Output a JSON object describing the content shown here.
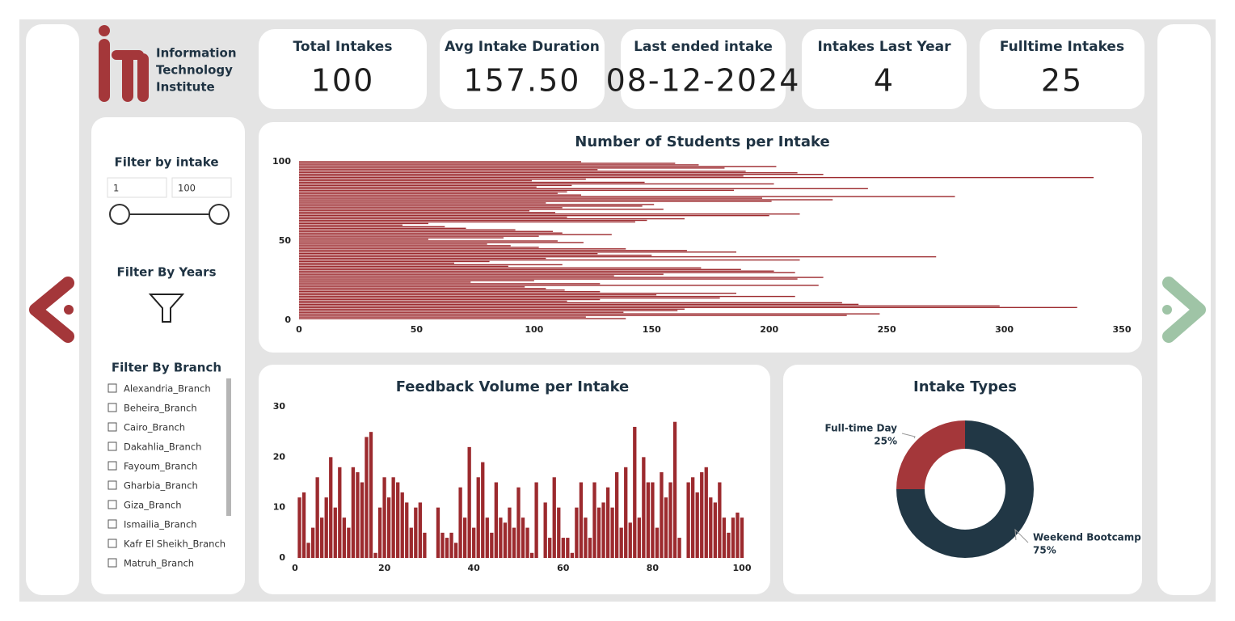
{
  "logo": {
    "lines": [
      "Information",
      "Technology",
      "Institute"
    ]
  },
  "kpis": [
    {
      "title": "Total Intakes",
      "value": 100
    },
    {
      "title": "Avg Intake Duration",
      "value": "157.50"
    },
    {
      "title": "Last ended intake",
      "value": "08-12-2024"
    },
    {
      "title": "Intakes Last Year",
      "value": 4
    },
    {
      "title": "Fulltime Intakes",
      "value": 25
    }
  ],
  "filters": {
    "intake_title": "Filter by intake",
    "intake_range": [
      1,
      100
    ],
    "years_title": "Filter By Years",
    "branch_title": "Filter By Branch",
    "branches": [
      "Alexandria_Branch",
      "Beheira_Branch",
      "Cairo_Branch",
      "Dakahlia_Branch",
      "Fayoum_Branch",
      "Gharbia_Branch",
      "Giza_Branch",
      "Ismailia_Branch",
      "Kafr El Sheikh_Branch",
      "Matruh_Branch"
    ]
  },
  "chart_data": [
    {
      "type": "hbar",
      "title": "Number of Students per Intake",
      "color": "#9c2a2e",
      "y": [
        1,
        2,
        3,
        4,
        5,
        6,
        7,
        8,
        9,
        10,
        11,
        12,
        13,
        14,
        15,
        16,
        17,
        18,
        19,
        20,
        21,
        22,
        23,
        24,
        25,
        26,
        27,
        28,
        29,
        30,
        31,
        32,
        33,
        34,
        35,
        36,
        37,
        38,
        39,
        40,
        41,
        42,
        43,
        44,
        45,
        46,
        47,
        48,
        49,
        50,
        51,
        52,
        53,
        54,
        55,
        56,
        57,
        58,
        59,
        60,
        61,
        62,
        63,
        64,
        65,
        66,
        67,
        68,
        69,
        70,
        71,
        72,
        73,
        74,
        75,
        76,
        77,
        78,
        79,
        80,
        81,
        82,
        83,
        84,
        85,
        86,
        87,
        88,
        89,
        90,
        91,
        92,
        93,
        94,
        95,
        96,
        97,
        98,
        99,
        100
      ],
      "values": [
        139,
        122,
        233,
        247,
        138,
        161,
        164,
        331,
        298,
        238,
        231,
        114,
        128,
        179,
        211,
        152,
        186,
        128,
        113,
        105,
        96,
        221,
        128,
        73,
        100,
        212,
        223,
        134,
        155,
        211,
        202,
        188,
        171,
        89,
        112,
        66,
        81,
        213,
        105,
        271,
        150,
        127,
        186,
        165,
        139,
        102,
        90,
        80,
        121,
        110,
        55,
        87,
        102,
        133,
        112,
        108,
        92,
        71,
        62,
        44,
        55,
        143,
        148,
        164,
        114,
        200,
        213,
        109,
        98,
        155,
        112,
        146,
        151,
        105,
        201,
        227,
        197,
        279,
        120,
        110,
        114,
        185,
        242,
        101,
        116,
        202,
        147,
        99,
        122,
        338,
        189,
        223,
        212,
        190,
        127,
        181,
        203,
        170,
        160,
        120
      ],
      "xlim": [
        0,
        350
      ],
      "xticks": [
        0,
        50,
        100,
        150,
        200,
        250,
        300,
        350
      ],
      "ylim": [
        0,
        100
      ],
      "yticks": [
        0,
        50,
        100
      ]
    },
    {
      "type": "bar",
      "title": "Feedback Volume per Intake",
      "color": "#9c2a2e",
      "x": [
        1,
        2,
        3,
        4,
        5,
        6,
        7,
        8,
        9,
        10,
        11,
        12,
        13,
        14,
        15,
        16,
        17,
        18,
        19,
        20,
        21,
        22,
        23,
        24,
        25,
        26,
        27,
        28,
        29,
        30,
        31,
        32,
        33,
        34,
        35,
        36,
        37,
        38,
        39,
        40,
        41,
        42,
        43,
        44,
        45,
        46,
        47,
        48,
        49,
        50,
        51,
        52,
        53,
        54,
        55,
        56,
        57,
        58,
        59,
        60,
        61,
        62,
        63,
        64,
        65,
        66,
        67,
        68,
        69,
        70,
        71,
        72,
        73,
        74,
        75,
        76,
        77,
        78,
        79,
        80,
        81,
        82,
        83,
        84,
        85,
        86,
        87,
        88,
        89,
        90,
        91,
        92,
        93,
        94,
        95,
        96,
        97,
        98,
        99,
        100
      ],
      "values": [
        12,
        13,
        3,
        6,
        16,
        8,
        12,
        20,
        10,
        18,
        8,
        6,
        18,
        17,
        15,
        24,
        25,
        1,
        10,
        16,
        12,
        16,
        15,
        13,
        11,
        6,
        10,
        11,
        5,
        null,
        null,
        10,
        5,
        4,
        5,
        3,
        14,
        8,
        22,
        6,
        16,
        19,
        8,
        5,
        15,
        8,
        7,
        10,
        6,
        14,
        8,
        6,
        1,
        15,
        null,
        11,
        4,
        16,
        10,
        4,
        4,
        1,
        10,
        15,
        8,
        4,
        15,
        10,
        11,
        14,
        10,
        17,
        6,
        18,
        7,
        26,
        8,
        20,
        15,
        15,
        6,
        17,
        12,
        15,
        27,
        4,
        null,
        15,
        16,
        13,
        17,
        18,
        12,
        11,
        15,
        8,
        5,
        8,
        9,
        8
      ],
      "xlim": [
        0,
        100
      ],
      "xticks": [
        0,
        20,
        40,
        60,
        80,
        100
      ],
      "ylim": [
        0,
        30
      ],
      "yticks": [
        0,
        10,
        20,
        30
      ]
    },
    {
      "type": "donut",
      "title": "Intake Types",
      "categories": [
        "Full-time Day",
        "Weekend Bootcamp"
      ],
      "values": [
        25,
        75
      ],
      "value_labels": [
        "25%",
        "75%"
      ],
      "colors": [
        "#a4373a",
        "#213745"
      ]
    }
  ]
}
